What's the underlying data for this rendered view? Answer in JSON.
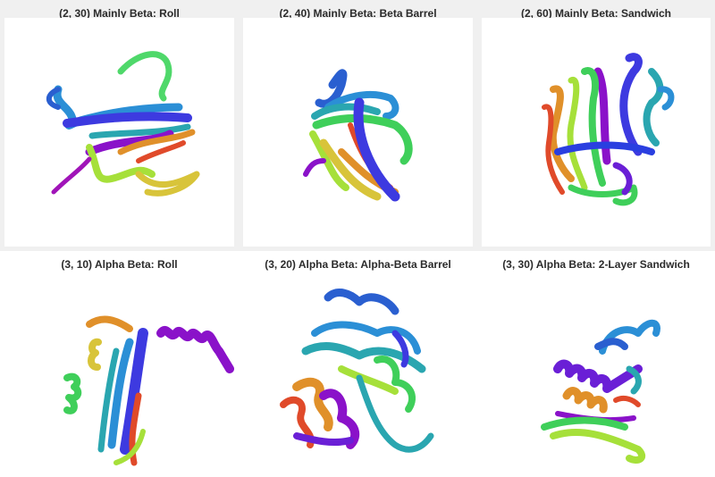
{
  "panels": [
    {
      "title": "(2, 30) Mainly Beta: Roll",
      "structure_icon": "protein-ribbon-roll"
    },
    {
      "title": "(2, 40) Mainly Beta: Beta Barrel",
      "structure_icon": "protein-ribbon-beta-barrel"
    },
    {
      "title": "(2, 60) Mainly Beta: Sandwich",
      "structure_icon": "protein-ribbon-sandwich"
    },
    {
      "title": "(3, 10) Alpha Beta: Roll",
      "structure_icon": "protein-ribbon-alpha-beta-roll"
    },
    {
      "title": "(3, 20) Alpha Beta: Alpha-Beta Barrel",
      "structure_icon": "protein-ribbon-alpha-beta-barrel"
    },
    {
      "title": "(3, 30) Alpha Beta: 2-Layer Sandwich",
      "structure_icon": "protein-ribbon-2-layer-sandwich"
    }
  ],
  "palette": {
    "purple": "#8a12c9",
    "violet": "#6a1fd6",
    "blue": "#2a3fe0",
    "teal": "#2aa6b0",
    "cyan": "#2b8fd6",
    "green": "#3fcf5a",
    "lime": "#a6e03a",
    "yellow": "#d8c43a",
    "orange": "#e0902a",
    "red": "#e04a2a"
  }
}
